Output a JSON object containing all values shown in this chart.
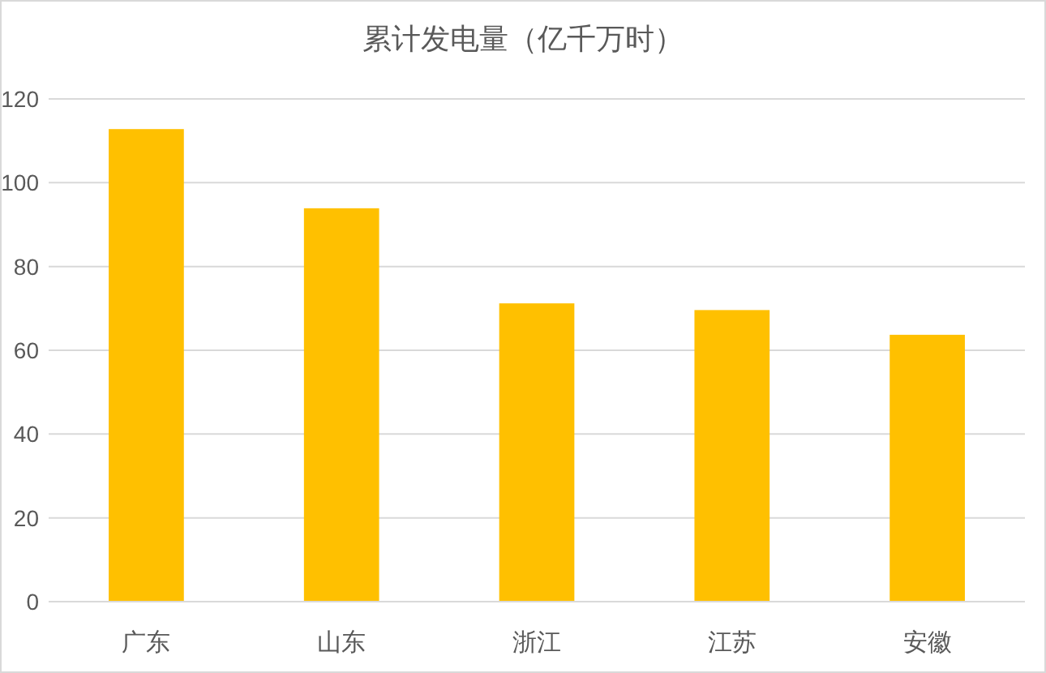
{
  "chart_data": {
    "type": "bar",
    "title": "累计发电量（亿千万时）",
    "categories": [
      "广东",
      "山东",
      "浙江",
      "江苏",
      "安徽"
    ],
    "values": [
      112.8,
      93.9,
      71.2,
      69.6,
      63.7
    ],
    "color": "#ffc000",
    "ylim": [
      0,
      120
    ],
    "yticks": [
      0,
      20,
      40,
      60,
      80,
      100,
      120
    ],
    "grid": "y"
  }
}
